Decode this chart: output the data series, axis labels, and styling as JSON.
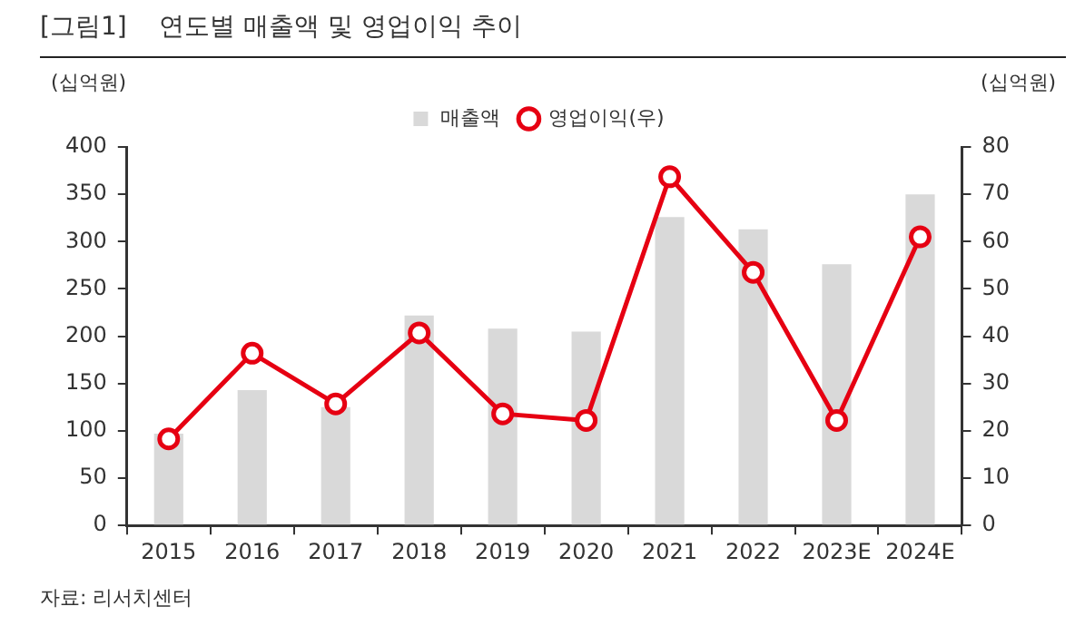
{
  "chart_data": {
    "type": "bar",
    "title": "[그림1]    연도별 매출액 및 영업이익 추이",
    "ylabel": "(십억원)",
    "y2label": "(십억원)",
    "categories": [
      "2015",
      "2016",
      "2017",
      "2018",
      "2019",
      "2020",
      "2021",
      "2022",
      "2023E",
      "2024E"
    ],
    "series": [
      {
        "name": "매출액",
        "color": "#d9d9d9",
        "values": [
          97,
          143,
          125,
          222,
          208,
          205,
          326,
          313,
          276,
          350
        ]
      },
      {
        "name": "영업이익(우)",
        "type": "line",
        "axis": "y2",
        "color": "#e60012",
        "marker": "circle",
        "line_style": "solid",
        "values": [
          18.3,
          36.4,
          25.7,
          40.7,
          23.6,
          22.2,
          73.7,
          53.5,
          22.2,
          61
        ]
      }
    ],
    "ylim": [
      0,
      400
    ],
    "yticks": [
      0,
      50,
      100,
      150,
      200,
      250,
      300,
      350,
      400
    ],
    "y2lim": [
      0,
      80
    ],
    "y2ticks": [
      0,
      10,
      20,
      30,
      40,
      50,
      60,
      70,
      80
    ],
    "grid": false,
    "legend": "top",
    "annotations": [
      "자료: 리서치센터"
    ]
  }
}
